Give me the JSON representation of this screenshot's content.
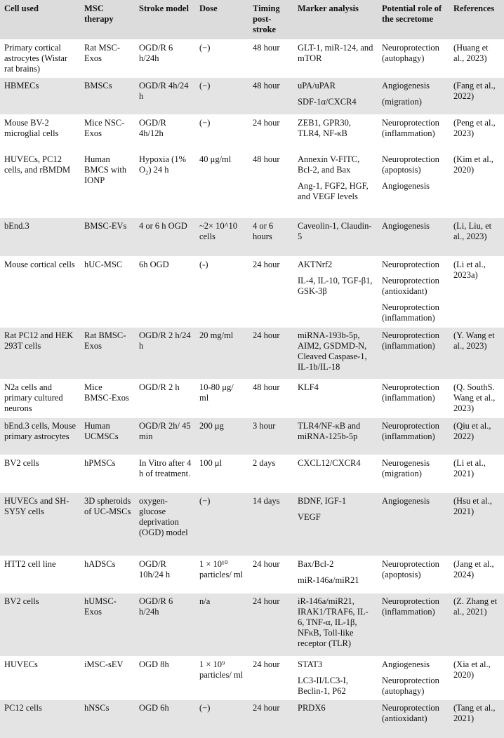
{
  "table": {
    "header": [
      "Cell used",
      "MSC therapy",
      "Stroke model",
      "Dose",
      "Timing post-stroke",
      "Marker analysis",
      "Potential role of the secretome",
      "References"
    ],
    "rows": [
      [
        "Primary cortical astrocytes (Wistar rat brains)",
        "Rat MSC-Exos",
        "OGD/R 6 h/24h",
        "(−)",
        "48 hour",
        "GLT-1, miR-124, and mTOR",
        "Neuroprotection (autophagy)",
        "(Huang et al., 2023)"
      ],
      [
        "HBMECs",
        "BMSCs",
        "OGD/R 4h/24 h",
        "(−)",
        "48 hour",
        [
          "uPA/uPAR",
          "SDF-1α/CXCR4"
        ],
        [
          "Angiogenesis",
          "(migration)"
        ],
        "(Fang et al., 2022)"
      ],
      [
        "Mouse BV-2 microglial cells",
        "Mice NSC-Exos",
        "OGD/R 4h/12h",
        "(−)",
        "24 hour",
        "ZEB1, GPR30, TLR4, NF-κB",
        "Neuroprotection (inflammation)",
        "(Peng et al., 2023)"
      ],
      [
        "HUVECs, PC12 cells, and rBMDM",
        "Human BMCS with IONP",
        "Hypoxia (1% O₂) 24 h",
        "40 μg/ml",
        "48 hour",
        [
          "Annexin V-FITC, Bcl-2, and Bax",
          "Ang-1, FGF2, HGF, and VEGF levels"
        ],
        [
          "Neuroprotection (apoptosis)",
          "Angiogenesis"
        ],
        "(Kim et al., 2020)"
      ],
      [
        "bEnd.3",
        "BMSC-EVs",
        "4 or 6 h OGD",
        "~2× 10^10 cells",
        "4 or 6 hours",
        "Caveolin-1, Claudin-5",
        "Angiogenesis",
        "(Li, Liu, et al., 2023)"
      ],
      [
        "Mouse cortical cells",
        "hUC-MSC",
        "6h OGD",
        "(-)",
        "24 hour",
        [
          "AKTNrf2",
          "IL-4, IL-10, TGF-β1, GSK-3β"
        ],
        [
          "Neuroprotection",
          "Neuroprotection (antioxidant)",
          "Neuroprotection (inflammation)"
        ],
        "(Li et al., 2023a)"
      ],
      [
        "Rat PC12 and HEK 293T cells",
        "Rat BMSC-Exos",
        "OGD/R 2 h/24 h",
        "20 mg/ml",
        "24 hour",
        "miRNA-193b-5p, AIM2, GSDMD-N, Cleaved Caspase-1, IL-1b/IL-18",
        "Neuroprotection (inflammation)",
        "(Y. Wang et al., 2023)"
      ],
      [
        "N2a cells and primary cultured neurons",
        "Mice BMSC-Exos",
        "OGD/R 2 h",
        "10-80 μg/ ml",
        "48 hour",
        "KLF4",
        "Neuroprotection (inflammation)",
        "(Q. SouthS. Wang et al., 2023)"
      ],
      [
        "bEnd.3 cells, Mouse primary astrocytes",
        "Human UCMSCs",
        "OGD/R 2h/ 45 min",
        "200 μg",
        "3 hour",
        "TLR4/NF-κB and miRNA-125b-5p",
        "Neuroprotection (inflammation)",
        "(Qiu et al., 2022)"
      ],
      [
        "BV2 cells",
        "hPMSCs",
        "In Vitro after 4 h of treatment.",
        "100 μl",
        "2 days",
        "CXCL12/CXCR4",
        "Neurogenesis (migration)",
        "(Li et al., 2021)"
      ],
      [
        "HUVECs and SH-SY5Y cells",
        "3D spheroids of UC-MSCs",
        "oxygen-glucose deprivation (OGD) model",
        "(−)",
        "14 days",
        [
          "BDNF, IGF-1",
          "VEGF"
        ],
        "Angiogenesis",
        "(Hsu et al., 2021)"
      ],
      [
        "HTT2 cell line",
        "hADSCs",
        "OGD/R 10h/24 h",
        "1 × 10¹⁰ particles/ ml",
        "24 hour",
        [
          "Bax/Bcl-2",
          "miR-146a/miR21"
        ],
        "Neuroprotection (apoptosis)",
        "(Jang et al., 2024)"
      ],
      [
        "BV2 cells",
        "hUMSC-Exos",
        "OGD/R 6 h/24h",
        "n/a",
        "24 hour",
        "iR-146a/miR21, IRAK1/TRAF6, IL-6, TNF-α, IL-1β, NFκB, Toll-like receptor (TLR)",
        "Neuroprotection (inflammation)",
        "(Z. Zhang et al., 2021)"
      ],
      [
        "HUVECs",
        "iMSC-sEV",
        "OGD 8h",
        "1 × 10⁹ particles/ ml",
        "24 hour",
        [
          "STAT3",
          "LC3-II/LC3-I, Beclin-1, P62"
        ],
        [
          "Angiogenesis",
          "Neuroprotection (autophagy)"
        ],
        "(Xia et al., 2020)"
      ],
      [
        "PC12 cells",
        "hNSCs",
        "OGD 6h",
        "(−)",
        "24 hour",
        "PRDX6",
        "Neuroprotection (antioxidant)",
        "(Tang et al., 2021)"
      ]
    ]
  }
}
